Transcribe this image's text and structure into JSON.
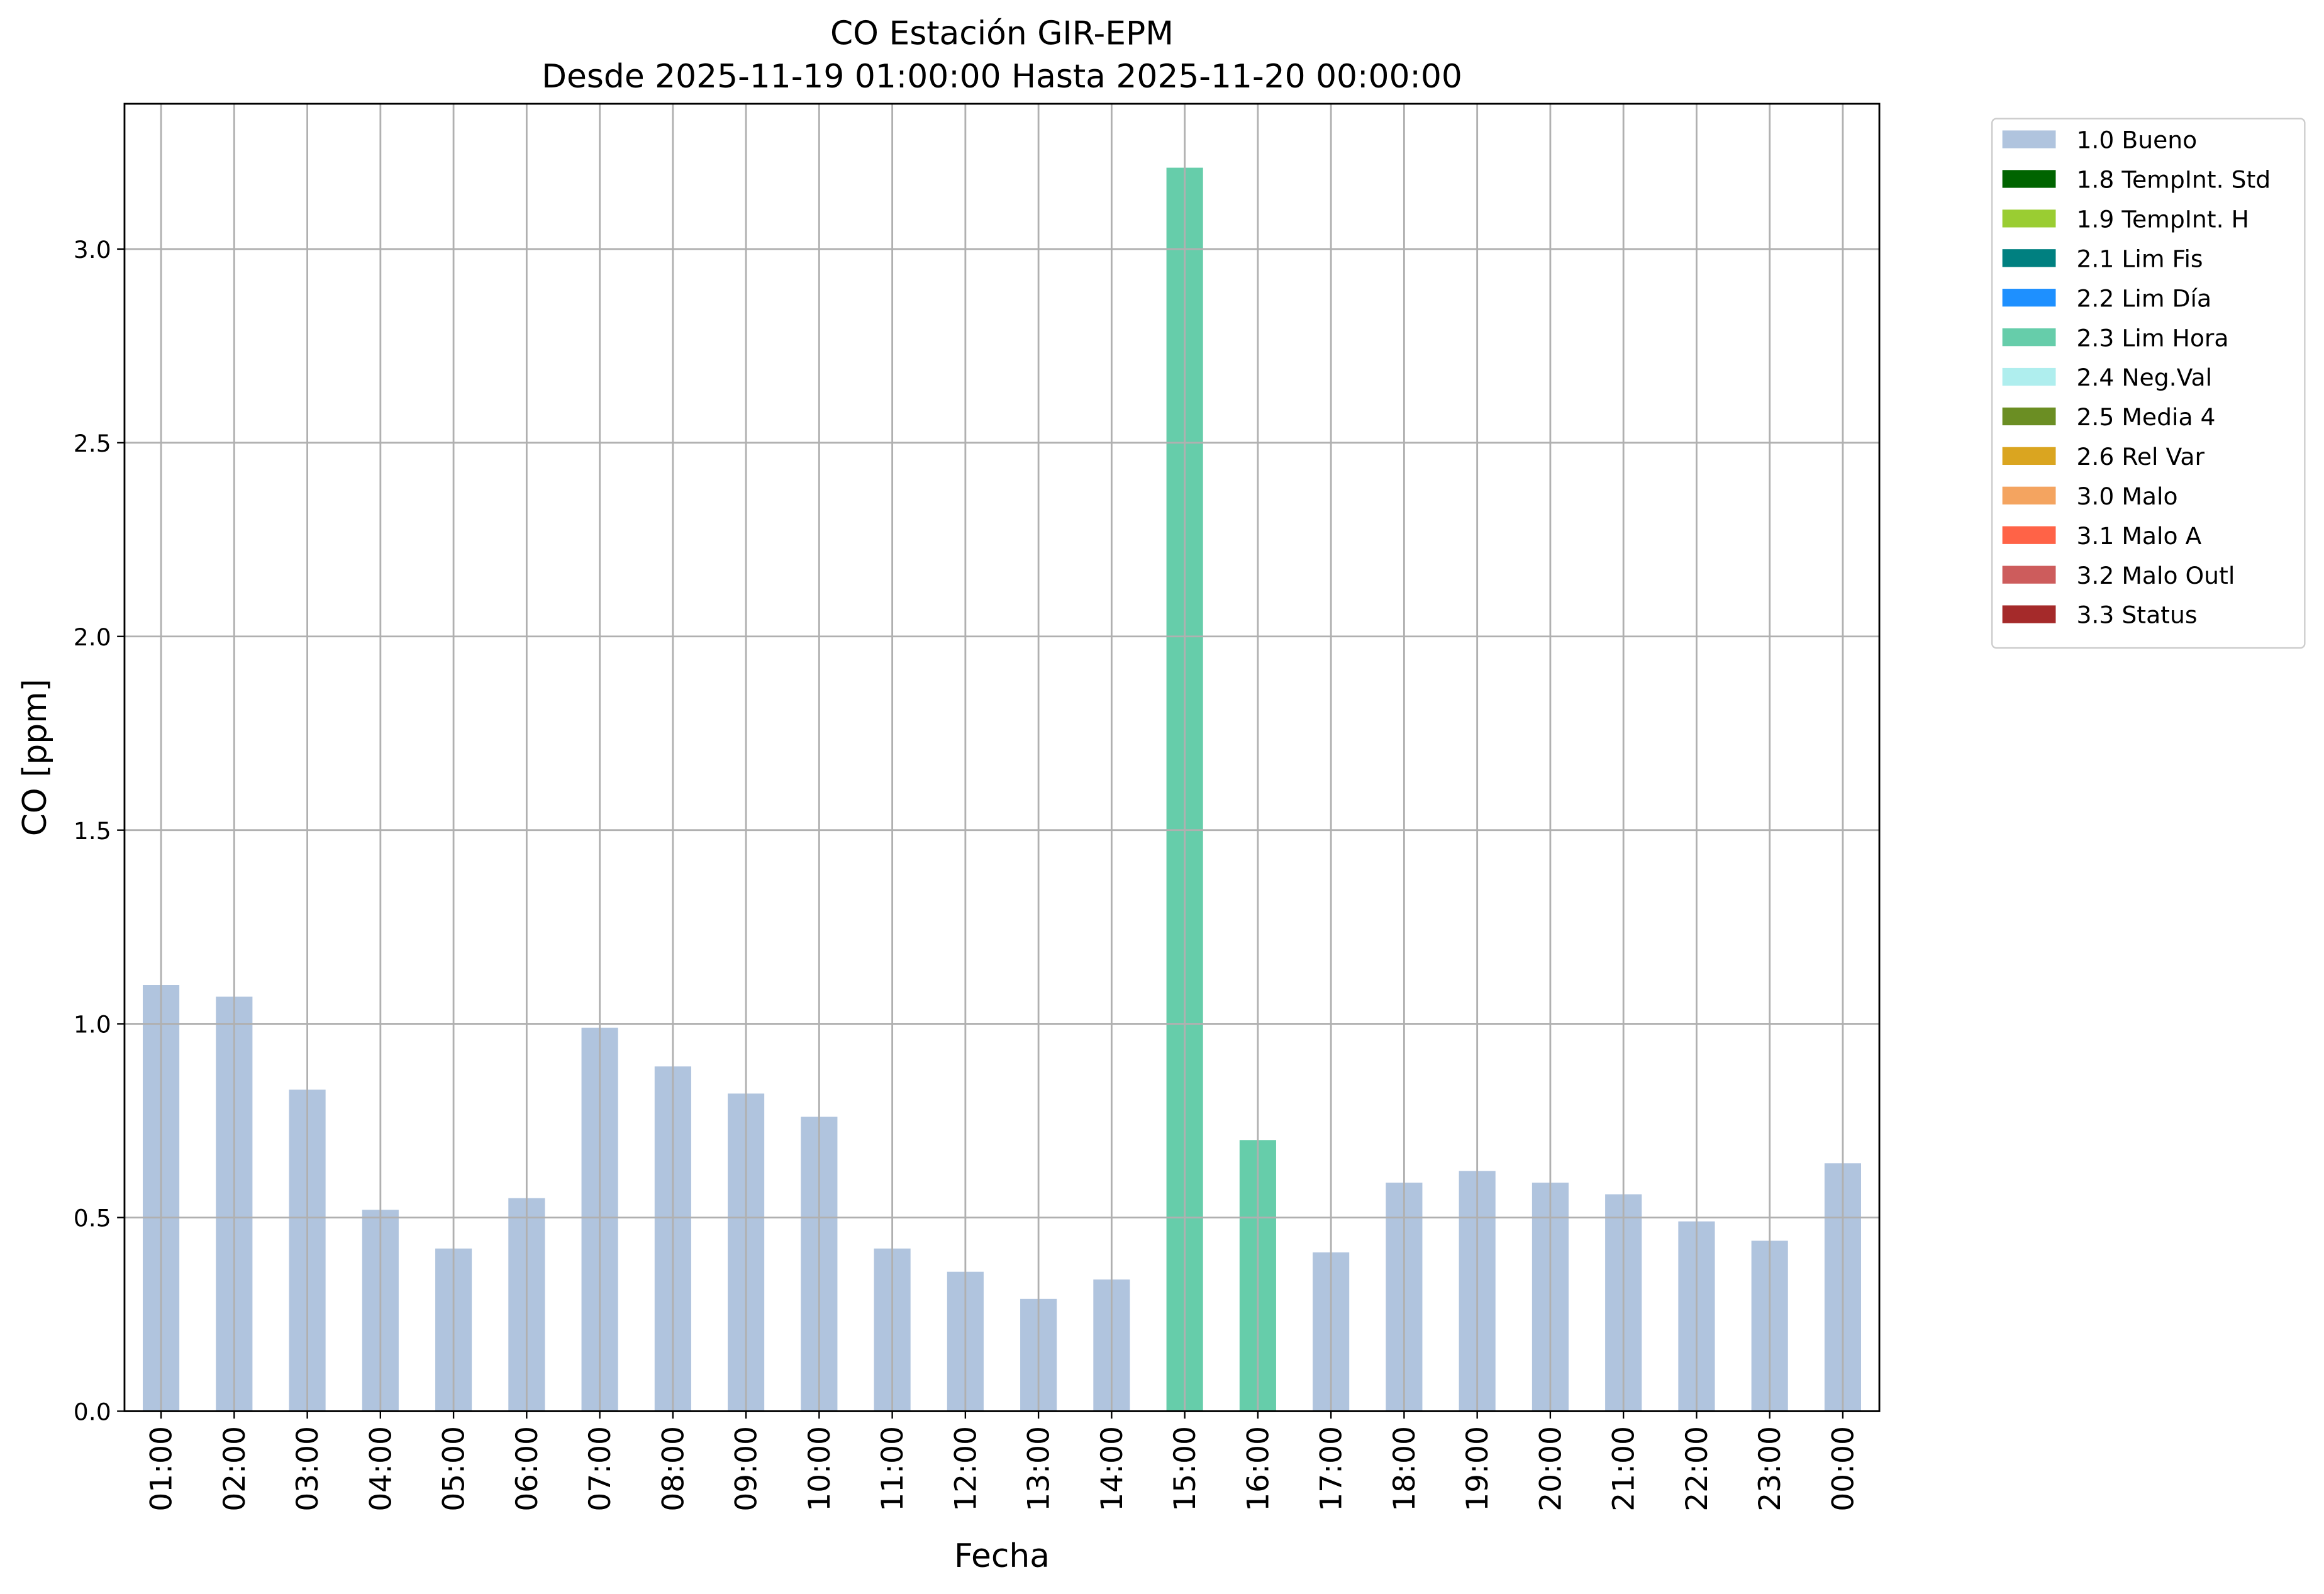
{
  "chart_data": {
    "type": "bar",
    "stacked": true,
    "title": "CO Estación GIR-EPM",
    "subtitle": "Desde 2025-11-19 01:00:00 Hasta 2025-11-20 00:00:00",
    "x_label": "Fecha",
    "y_label": "CO [ppm]",
    "categories": [
      "01:00",
      "02:00",
      "03:00",
      "04:00",
      "05:00",
      "06:00",
      "07:00",
      "08:00",
      "09:00",
      "10:00",
      "11:00",
      "12:00",
      "13:00",
      "14:00",
      "15:00",
      "16:00",
      "17:00",
      "18:00",
      "19:00",
      "20:00",
      "21:00",
      "22:00",
      "23:00",
      "00:00"
    ],
    "series": [
      {
        "name": "1.0 Bueno",
        "color": "#b0c4de",
        "values": [
          1.1,
          1.07,
          0.83,
          0.52,
          0.42,
          0.55,
          0.99,
          0.89,
          0.82,
          0.76,
          0.42,
          0.36,
          0.29,
          0.34,
          null,
          null,
          0.41,
          0.59,
          0.62,
          0.59,
          0.56,
          0.49,
          0.44,
          0.64
        ]
      },
      {
        "name": "1.8 TempInt. Std",
        "color": "#006400",
        "values": [
          null,
          null,
          null,
          null,
          null,
          null,
          null,
          null,
          null,
          null,
          null,
          null,
          null,
          null,
          null,
          null,
          null,
          null,
          null,
          null,
          null,
          null,
          null,
          null
        ]
      },
      {
        "name": "1.9 TempInt. H",
        "color": "#9acd32",
        "values": [
          null,
          null,
          null,
          null,
          null,
          null,
          null,
          null,
          null,
          null,
          null,
          null,
          null,
          null,
          null,
          null,
          null,
          null,
          null,
          null,
          null,
          null,
          null,
          null
        ]
      },
      {
        "name": "2.1 Lim Fis",
        "color": "#008080",
        "values": [
          null,
          null,
          null,
          null,
          null,
          null,
          null,
          null,
          null,
          null,
          null,
          null,
          null,
          null,
          null,
          null,
          null,
          null,
          null,
          null,
          null,
          null,
          null,
          null
        ]
      },
      {
        "name": "2.2 Lim Día",
        "color": "#1e90ff",
        "values": [
          null,
          null,
          null,
          null,
          null,
          null,
          null,
          null,
          null,
          null,
          null,
          null,
          null,
          null,
          null,
          null,
          null,
          null,
          null,
          null,
          null,
          null,
          null,
          null
        ]
      },
      {
        "name": "2.3 Lim Hora",
        "color": "#66cdaa",
        "values": [
          null,
          null,
          null,
          null,
          null,
          null,
          null,
          null,
          null,
          null,
          null,
          null,
          null,
          null,
          3.21,
          0.7,
          null,
          null,
          null,
          null,
          null,
          null,
          null,
          null
        ]
      },
      {
        "name": "2.4 Neg.Val",
        "color": "#afeeee",
        "values": [
          null,
          null,
          null,
          null,
          null,
          null,
          null,
          null,
          null,
          null,
          null,
          null,
          null,
          null,
          null,
          null,
          null,
          null,
          null,
          null,
          null,
          null,
          null,
          null
        ]
      },
      {
        "name": "2.5 Media 4",
        "color": "#6b8e23",
        "values": [
          null,
          null,
          null,
          null,
          null,
          null,
          null,
          null,
          null,
          null,
          null,
          null,
          null,
          null,
          null,
          null,
          null,
          null,
          null,
          null,
          null,
          null,
          null,
          null
        ]
      },
      {
        "name": "2.6 Rel Var",
        "color": "#daa520",
        "values": [
          null,
          null,
          null,
          null,
          null,
          null,
          null,
          null,
          null,
          null,
          null,
          null,
          null,
          null,
          null,
          null,
          null,
          null,
          null,
          null,
          null,
          null,
          null,
          null
        ]
      },
      {
        "name": "3.0 Malo",
        "color": "#f4a460",
        "values": [
          null,
          null,
          null,
          null,
          null,
          null,
          null,
          null,
          null,
          null,
          null,
          null,
          null,
          null,
          null,
          null,
          null,
          null,
          null,
          null,
          null,
          null,
          null,
          null
        ]
      },
      {
        "name": "3.1 Malo A",
        "color": "#ff6347",
        "values": [
          null,
          null,
          null,
          null,
          null,
          null,
          null,
          null,
          null,
          null,
          null,
          null,
          null,
          null,
          null,
          null,
          null,
          null,
          null,
          null,
          null,
          null,
          null,
          null
        ]
      },
      {
        "name": "3.2 Malo Outl",
        "color": "#cd5c5c",
        "values": [
          null,
          null,
          null,
          null,
          null,
          null,
          null,
          null,
          null,
          null,
          null,
          null,
          null,
          null,
          null,
          null,
          null,
          null,
          null,
          null,
          null,
          null,
          null,
          null
        ]
      },
      {
        "name": "3.3 Status",
        "color": "#a52a2a",
        "values": [
          null,
          null,
          null,
          null,
          null,
          null,
          null,
          null,
          null,
          null,
          null,
          null,
          null,
          null,
          null,
          null,
          null,
          null,
          null,
          null,
          null,
          null,
          null,
          null
        ]
      }
    ],
    "ylim": [
      0,
      3.375
    ],
    "yticks": [
      {
        "value": 0,
        "label": "0.0"
      },
      0.5,
      {
        "value": 1,
        "label": "1.0"
      },
      1.5,
      {
        "value": 2,
        "label": "2.0"
      },
      2.5,
      {
        "value": 3,
        "label": "3.0"
      }
    ],
    "grid": true,
    "legend": "outside upper right"
  }
}
